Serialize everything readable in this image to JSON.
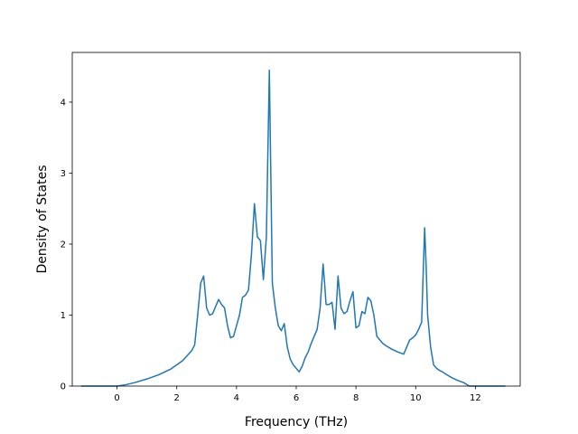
{
  "chart_data": {
    "type": "line",
    "title": "",
    "xlabel": "Frequency (THz)",
    "ylabel": "Density of States",
    "xlim": [
      -1.5,
      13.5
    ],
    "ylim": [
      0,
      4.7
    ],
    "xticks": [
      0,
      2,
      4,
      6,
      8,
      10,
      12
    ],
    "yticks": [
      0,
      1,
      2,
      3,
      4
    ],
    "grid": false,
    "legend": "none",
    "series": [
      {
        "color": "#1f77b4",
        "x": [
          -1.2,
          -0.5,
          0.0,
          0.3,
          0.6,
          1.0,
          1.4,
          1.8,
          2.2,
          2.5,
          2.6,
          2.7,
          2.8,
          2.9,
          3.0,
          3.1,
          3.2,
          3.3,
          3.4,
          3.5,
          3.6,
          3.7,
          3.8,
          3.9,
          4.0,
          4.1,
          4.2,
          4.3,
          4.4,
          4.5,
          4.6,
          4.7,
          4.8,
          4.9,
          5.0,
          5.1,
          5.2,
          5.3,
          5.4,
          5.5,
          5.6,
          5.7,
          5.8,
          5.9,
          6.0,
          6.1,
          6.2,
          6.3,
          6.4,
          6.5,
          6.6,
          6.7,
          6.8,
          6.9,
          6.95,
          7.0,
          7.1,
          7.2,
          7.3,
          7.4,
          7.5,
          7.6,
          7.7,
          7.8,
          7.9,
          8.0,
          8.1,
          8.2,
          8.3,
          8.4,
          8.5,
          8.6,
          8.7,
          8.8,
          8.9,
          9.0,
          9.2,
          9.4,
          9.6,
          9.7,
          9.8,
          9.9,
          10.0,
          10.1,
          10.2,
          10.3,
          10.35,
          10.4,
          10.5,
          10.6,
          10.7,
          10.8,
          10.9,
          11.0,
          11.2,
          11.4,
          11.6,
          11.8,
          11.9,
          12.0,
          12.5,
          13.0
        ],
        "y": [
          0.0,
          0.0,
          0.0,
          0.02,
          0.05,
          0.1,
          0.16,
          0.24,
          0.36,
          0.5,
          0.58,
          1.0,
          1.45,
          1.55,
          1.1,
          1.0,
          1.02,
          1.12,
          1.22,
          1.15,
          1.1,
          0.85,
          0.68,
          0.7,
          0.85,
          1.0,
          1.25,
          1.28,
          1.35,
          1.85,
          2.57,
          2.1,
          2.05,
          1.5,
          2.1,
          4.45,
          1.45,
          1.1,
          0.85,
          0.78,
          0.88,
          0.55,
          0.38,
          0.3,
          0.25,
          0.2,
          0.28,
          0.4,
          0.48,
          0.6,
          0.7,
          0.8,
          1.1,
          1.72,
          1.45,
          1.15,
          1.15,
          1.18,
          0.8,
          1.55,
          1.1,
          1.02,
          1.05,
          1.2,
          1.33,
          0.82,
          0.85,
          1.05,
          1.02,
          1.25,
          1.2,
          1.0,
          0.7,
          0.65,
          0.6,
          0.57,
          0.52,
          0.48,
          0.45,
          0.55,
          0.65,
          0.68,
          0.72,
          0.8,
          0.9,
          2.23,
          1.7,
          1.0,
          0.55,
          0.3,
          0.25,
          0.22,
          0.2,
          0.17,
          0.12,
          0.08,
          0.05,
          0.0,
          0.0,
          0.0,
          0.0,
          0.0
        ]
      }
    ]
  }
}
